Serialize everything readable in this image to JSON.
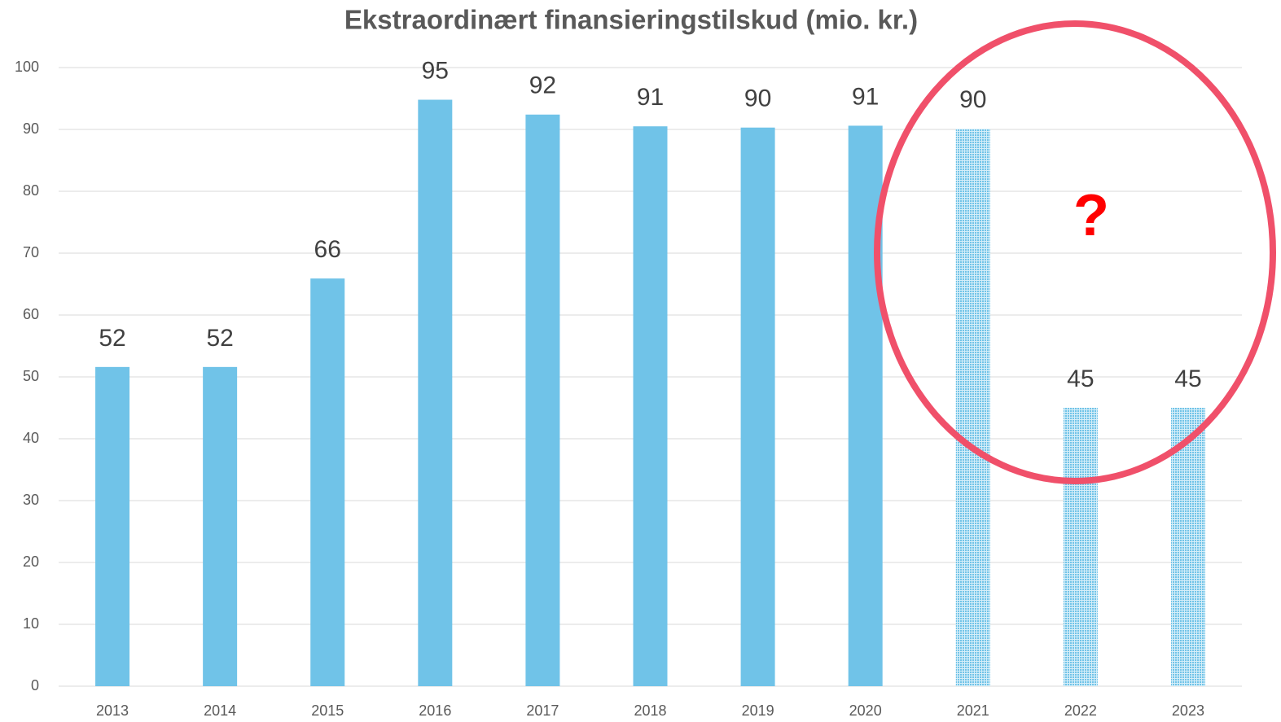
{
  "chart_data": {
    "type": "bar",
    "title": "Ekstraordinært finansieringstilskud (mio. kr.)",
    "categories": [
      "2013",
      "2014",
      "2015",
      "2016",
      "2017",
      "2018",
      "2019",
      "2020",
      "2021",
      "2022",
      "2023"
    ],
    "values": [
      51.6,
      51.6,
      65.9,
      94.8,
      92.4,
      90.5,
      90.3,
      90.6,
      90.1,
      45,
      45
    ],
    "value_labels": [
      "52",
      "52",
      "66",
      "95",
      "92",
      "91",
      "90",
      "91",
      "90",
      "45",
      "45"
    ],
    "hatched": [
      false,
      false,
      false,
      false,
      false,
      false,
      false,
      false,
      true,
      true,
      true
    ],
    "color": "#70c3e8",
    "ylim": [
      0,
      100
    ],
    "yticks": [
      0,
      10,
      20,
      30,
      40,
      50,
      60,
      70,
      80,
      90,
      100
    ],
    "grid": true,
    "annotation": "?"
  }
}
